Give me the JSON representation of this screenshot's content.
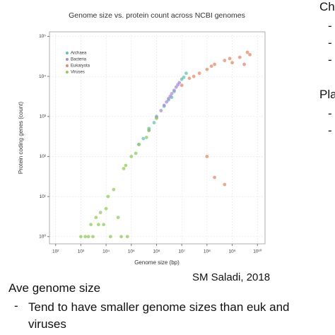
{
  "chart_data": {
    "type": "scatter",
    "title": "Genome size vs. protein count across NCBI genomes",
    "xlabel": "Genome size (bp)",
    "ylabel": "Protein coding genes (count)",
    "xscale": "log",
    "yscale": "log",
    "grid": true,
    "legend": "upper left",
    "xlim": [
      57,
      20000000000
    ],
    "ylim": [
      0.66,
      130000
    ],
    "xticks": [
      {
        "value": 100,
        "label": "10²"
      },
      {
        "value": 1000,
        "label": "10³"
      },
      {
        "value": 10000,
        "label": "10⁴"
      },
      {
        "value": 100000,
        "label": "10⁵"
      },
      {
        "value": 1000000,
        "label": "10⁶"
      },
      {
        "value": 10000000,
        "label": "10⁷"
      },
      {
        "value": 100000000,
        "label": "10⁸"
      },
      {
        "value": 1000000000,
        "label": "10⁹"
      },
      {
        "value": 10000000000,
        "label": "10¹⁰"
      }
    ],
    "yticks": [
      {
        "value": 1,
        "label": "10⁰"
      },
      {
        "value": 10,
        "label": "10¹"
      },
      {
        "value": 100,
        "label": "10²"
      },
      {
        "value": 1000,
        "label": "10³"
      },
      {
        "value": 10000,
        "label": "10⁴"
      },
      {
        "value": 100000,
        "label": "10⁵"
      }
    ],
    "series": [
      {
        "name": "Archaea",
        "color": "#5cc6b0",
        "x": [
          200000,
          500000,
          1000000,
          2000000,
          3000000,
          5000000,
          10000000,
          12000000,
          800000,
          4000000,
          15000000,
          300000
        ],
        "values": [
          200,
          500,
          1000,
          1800,
          2600,
          4200,
          8500,
          9500,
          700,
          3000,
          12000,
          280
        ]
      },
      {
        "name": "Bacteria",
        "color": "#a98be0",
        "x": [
          500000,
          1000000,
          2000000,
          3000000,
          4000000,
          5000000,
          6000000,
          8000000,
          1500000,
          2500000,
          3500000,
          7000000
        ],
        "values": [
          450,
          950,
          1900,
          2800,
          3700,
          4500,
          5400,
          7000,
          1400,
          2300,
          3200,
          6200
        ]
      },
      {
        "name": "Eukaryota",
        "color": "#e88a68",
        "x": [
          10000000,
          20000000,
          50000000,
          100000000,
          200000000,
          500000000,
          1000000000,
          2000000000,
          3000000000,
          5000000000,
          30000000,
          150000000,
          800000000,
          4000000000,
          200000000,
          500000000,
          100000000
        ],
        "values": [
          6000,
          9000,
          12000,
          15000,
          20000,
          25000,
          22000,
          30000,
          20000,
          35000,
          10000,
          18000,
          28000,
          40000,
          30,
          20,
          100
        ]
      },
      {
        "name": "Viruses",
        "color": "#8fce5a",
        "x": [
          1000,
          2000,
          5000,
          10000,
          20000,
          50000,
          100000,
          200000,
          500000,
          1000000,
          3000,
          8000,
          30000,
          70000,
          150000,
          400000,
          2500,
          6000,
          15000,
          40000,
          1500,
          4000,
          12000,
          60000
        ],
        "values": [
          1,
          1,
          2,
          5,
          15,
          50,
          100,
          200,
          450,
          900,
          1,
          2,
          3,
          1,
          120,
          300,
          2,
          4,
          1,
          1,
          1,
          3,
          10,
          60
        ]
      }
    ]
  },
  "slide": {
    "credit": "SM Saladi, 2018",
    "heading": "Ave genome size",
    "bullet_marker": "-",
    "bullet": "Tend to have smaller genome sizes than euk and viruses",
    "right_heading1": "Ch",
    "right_bullets1": [
      "-",
      "-",
      "-"
    ],
    "right_heading2": "Pla",
    "right_bullets2": [
      "-",
      "-"
    ]
  }
}
